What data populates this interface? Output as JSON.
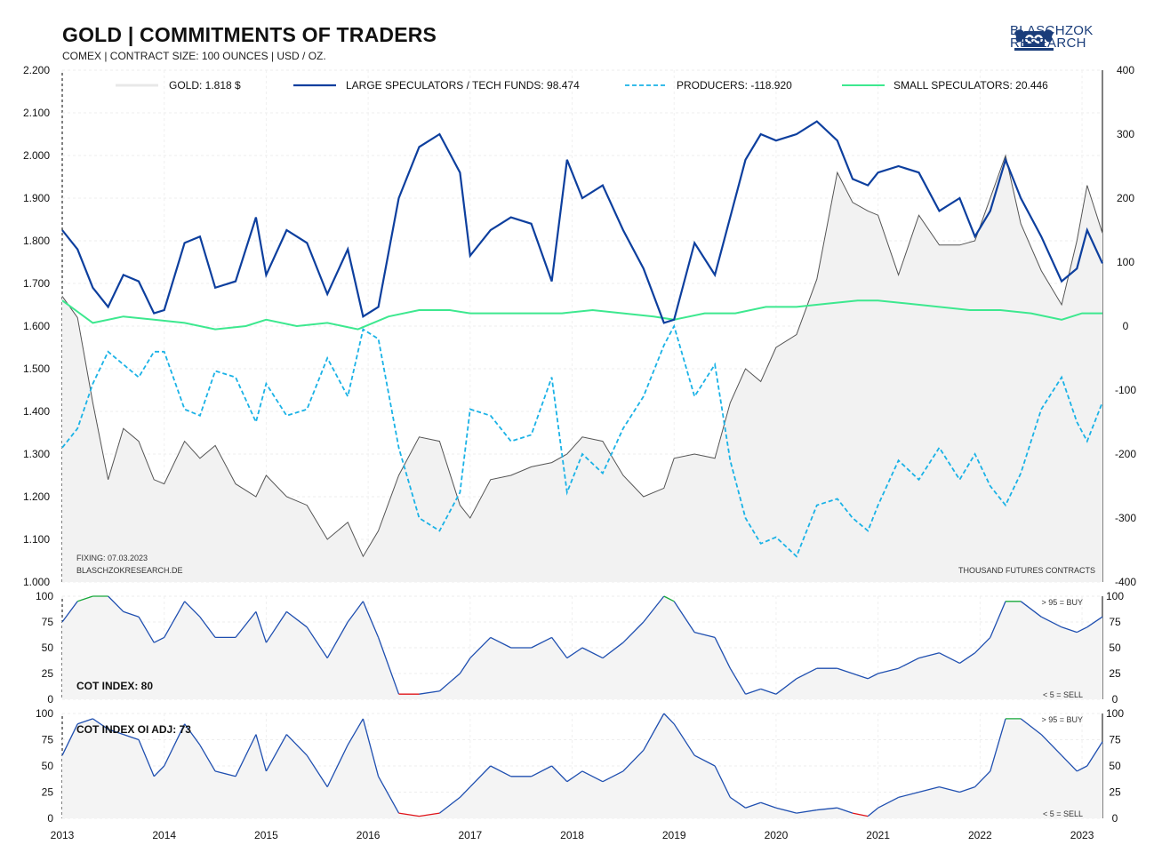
{
  "header": {
    "title": "GOLD | COMMITMENTS OF TRADERS",
    "subtitle": "COMEX | CONTRACT SIZE: 100 OUNCES | USD / OZ.",
    "logo_text_line1": "BLASCHZOK",
    "logo_text_line2": "RESEARCH"
  },
  "notes": {
    "fixing": "FIXING: 07.03.2023",
    "website": "BLASCHZOKRESEARCH.DE",
    "units": "THOUSAND  FUTURES  CONTRACTS",
    "buy_label": "> 95 = BUY",
    "sell_label": "< 5 = SELL",
    "cot_index_label": "COT INDEX: 80",
    "cot_index_oi_label": "COT INDEX OI ADJ: 73"
  },
  "colors": {
    "gold": "#555555",
    "gold_fill": "#f2f2f2",
    "large_spec": "#0d3f9e",
    "producers": "#1ab2e6",
    "small_spec": "#3de88f",
    "index_line": "#1f4fb0",
    "buy": "#17a83a",
    "sell": "#e0141a"
  },
  "chart_data": [
    {
      "type": "line",
      "legend": [
        "GOLD: 1.818 $",
        "LARGE SPECULATORS / TECH FUNDS: 98.474",
        "PRODUCERS: -118.920",
        "SMALL SPECULATORS: 20.446"
      ],
      "x_ticks": [
        "2013",
        "2014",
        "2015",
        "2016",
        "2017",
        "2018",
        "2019",
        "2020",
        "2021",
        "2022",
        "2023"
      ],
      "y_left_ticks": [
        "2.200",
        "2.100",
        "2.000",
        "1.900",
        "1.800",
        "1.700",
        "1.600",
        "1.500",
        "1.400",
        "1.300",
        "1.200",
        "1.100",
        "1.000"
      ],
      "y_right_ticks": [
        "400",
        "300",
        "200",
        "100",
        "0",
        "-100",
        "-200",
        "-300",
        "-400"
      ],
      "ylim_left": [
        1000,
        2200
      ],
      "ylim_right": [
        -400,
        400
      ],
      "xlim": [
        2013.0,
        2023.2
      ],
      "series": [
        {
          "name": "GOLD",
          "axis": "left",
          "x": [
            2013.0,
            2013.15,
            2013.3,
            2013.45,
            2013.6,
            2013.75,
            2013.9,
            2014.0,
            2014.2,
            2014.35,
            2014.5,
            2014.7,
            2014.9,
            2015.0,
            2015.2,
            2015.4,
            2015.6,
            2015.8,
            2015.95,
            2016.1,
            2016.3,
            2016.5,
            2016.7,
            2016.9,
            2017.0,
            2017.2,
            2017.4,
            2017.6,
            2017.8,
            2017.95,
            2018.1,
            2018.3,
            2018.5,
            2018.7,
            2018.9,
            2019.0,
            2019.2,
            2019.4,
            2019.55,
            2019.7,
            2019.85,
            2020.0,
            2020.2,
            2020.4,
            2020.6,
            2020.75,
            2020.9,
            2021.0,
            2021.2,
            2021.4,
            2021.6,
            2021.8,
            2021.95,
            2022.1,
            2022.25,
            2022.4,
            2022.6,
            2022.8,
            2022.95,
            2023.05,
            2023.2
          ],
          "y": [
            1670,
            1620,
            1420,
            1240,
            1360,
            1330,
            1240,
            1230,
            1330,
            1290,
            1320,
            1230,
            1200,
            1250,
            1200,
            1180,
            1100,
            1140,
            1060,
            1120,
            1250,
            1340,
            1330,
            1180,
            1150,
            1240,
            1250,
            1270,
            1280,
            1300,
            1340,
            1330,
            1250,
            1200,
            1220,
            1290,
            1300,
            1290,
            1420,
            1500,
            1470,
            1550,
            1580,
            1710,
            1960,
            1890,
            1870,
            1860,
            1720,
            1860,
            1790,
            1790,
            1800,
            1900,
            2000,
            1840,
            1730,
            1650,
            1800,
            1930,
            1818
          ]
        },
        {
          "name": "LARGE SPECULATORS / TECH FUNDS",
          "axis": "right",
          "x": [
            2013.0,
            2013.15,
            2013.3,
            2013.45,
            2013.6,
            2013.75,
            2013.9,
            2014.0,
            2014.2,
            2014.35,
            2014.5,
            2014.7,
            2014.9,
            2015.0,
            2015.2,
            2015.4,
            2015.6,
            2015.8,
            2015.95,
            2016.1,
            2016.3,
            2016.5,
            2016.7,
            2016.9,
            2017.0,
            2017.2,
            2017.4,
            2017.6,
            2017.8,
            2017.95,
            2018.1,
            2018.3,
            2018.5,
            2018.7,
            2018.9,
            2019.0,
            2019.2,
            2019.4,
            2019.55,
            2019.7,
            2019.85,
            2020.0,
            2020.2,
            2020.4,
            2020.6,
            2020.75,
            2020.9,
            2021.0,
            2021.2,
            2021.4,
            2021.6,
            2021.8,
            2021.95,
            2022.1,
            2022.25,
            2022.4,
            2022.6,
            2022.8,
            2022.95,
            2023.05,
            2023.2
          ],
          "y": [
            150,
            120,
            60,
            30,
            80,
            70,
            20,
            25,
            130,
            140,
            60,
            70,
            170,
            80,
            150,
            130,
            50,
            120,
            15,
            30,
            200,
            280,
            300,
            240,
            110,
            150,
            170,
            160,
            70,
            260,
            200,
            220,
            150,
            90,
            5,
            10,
            130,
            80,
            170,
            260,
            300,
            290,
            300,
            320,
            290,
            230,
            220,
            240,
            250,
            240,
            180,
            200,
            140,
            180,
            260,
            200,
            140,
            70,
            90,
            150,
            98
          ]
        },
        {
          "name": "PRODUCERS",
          "axis": "right",
          "x": [
            2013.0,
            2013.15,
            2013.3,
            2013.45,
            2013.6,
            2013.75,
            2013.9,
            2014.0,
            2014.2,
            2014.35,
            2014.5,
            2014.7,
            2014.9,
            2015.0,
            2015.2,
            2015.4,
            2015.6,
            2015.8,
            2015.95,
            2016.1,
            2016.3,
            2016.5,
            2016.7,
            2016.9,
            2017.0,
            2017.2,
            2017.4,
            2017.6,
            2017.8,
            2017.95,
            2018.1,
            2018.3,
            2018.5,
            2018.7,
            2018.9,
            2019.0,
            2019.2,
            2019.4,
            2019.55,
            2019.7,
            2019.85,
            2020.0,
            2020.2,
            2020.4,
            2020.6,
            2020.75,
            2020.9,
            2021.0,
            2021.2,
            2021.4,
            2021.6,
            2021.8,
            2021.95,
            2022.1,
            2022.25,
            2022.4,
            2022.6,
            2022.8,
            2022.95,
            2023.05,
            2023.2
          ],
          "y": [
            -190,
            -160,
            -90,
            -40,
            -60,
            -80,
            -40,
            -40,
            -130,
            -140,
            -70,
            -80,
            -150,
            -90,
            -140,
            -130,
            -50,
            -110,
            -5,
            -20,
            -190,
            -300,
            -320,
            -260,
            -130,
            -140,
            -180,
            -170,
            -80,
            -260,
            -200,
            -230,
            -160,
            -110,
            -30,
            0,
            -110,
            -60,
            -210,
            -300,
            -340,
            -330,
            -360,
            -280,
            -270,
            -300,
            -320,
            -280,
            -210,
            -240,
            -190,
            -240,
            -200,
            -250,
            -280,
            -230,
            -130,
            -80,
            -150,
            -180,
            -119
          ]
        },
        {
          "name": "SMALL SPECULATORS",
          "axis": "right",
          "x": [
            2013.0,
            2013.3,
            2013.6,
            2013.9,
            2014.2,
            2014.5,
            2014.8,
            2015.0,
            2015.3,
            2015.6,
            2015.9,
            2016.2,
            2016.5,
            2016.8,
            2017.0,
            2017.3,
            2017.6,
            2017.9,
            2018.2,
            2018.5,
            2018.8,
            2019.0,
            2019.3,
            2019.6,
            2019.9,
            2020.2,
            2020.5,
            2020.8,
            2021.0,
            2021.3,
            2021.6,
            2021.9,
            2022.2,
            2022.5,
            2022.8,
            2023.0,
            2023.2
          ],
          "y": [
            40,
            5,
            15,
            10,
            5,
            -5,
            0,
            10,
            0,
            5,
            -5,
            15,
            25,
            25,
            20,
            20,
            20,
            20,
            25,
            20,
            15,
            10,
            20,
            20,
            30,
            30,
            35,
            40,
            40,
            35,
            30,
            25,
            25,
            20,
            10,
            20,
            20
          ]
        }
      ]
    },
    {
      "type": "line",
      "title": "COT INDEX: 80",
      "ylim": [
        0,
        100
      ],
      "y_ticks": [
        "100",
        "75",
        "50",
        "25",
        "0"
      ],
      "x": [
        2013.0,
        2013.15,
        2013.3,
        2013.45,
        2013.6,
        2013.75,
        2013.9,
        2014.0,
        2014.2,
        2014.35,
        2014.5,
        2014.7,
        2014.9,
        2015.0,
        2015.2,
        2015.4,
        2015.6,
        2015.8,
        2015.95,
        2016.1,
        2016.3,
        2016.5,
        2016.7,
        2016.9,
        2017.0,
        2017.2,
        2017.4,
        2017.6,
        2017.8,
        2017.95,
        2018.1,
        2018.3,
        2018.5,
        2018.7,
        2018.9,
        2019.0,
        2019.2,
        2019.4,
        2019.55,
        2019.7,
        2019.85,
        2020.0,
        2020.2,
        2020.4,
        2020.6,
        2020.75,
        2020.9,
        2021.0,
        2021.2,
        2021.4,
        2021.6,
        2021.8,
        2021.95,
        2022.1,
        2022.25,
        2022.4,
        2022.6,
        2022.8,
        2022.95,
        2023.05,
        2023.2
      ],
      "values": [
        75,
        95,
        100,
        100,
        85,
        80,
        55,
        60,
        95,
        80,
        60,
        60,
        85,
        55,
        85,
        70,
        40,
        75,
        95,
        60,
        5,
        5,
        8,
        25,
        40,
        60,
        50,
        50,
        60,
        40,
        50,
        40,
        55,
        75,
        100,
        95,
        65,
        60,
        30,
        5,
        10,
        5,
        20,
        30,
        30,
        25,
        20,
        25,
        30,
        40,
        45,
        35,
        45,
        60,
        95,
        95,
        80,
        70,
        65,
        70,
        80
      ]
    },
    {
      "type": "line",
      "title": "COT INDEX OI ADJ: 73",
      "ylim": [
        0,
        100
      ],
      "y_ticks": [
        "100",
        "75",
        "50",
        "25",
        "0"
      ],
      "x": [
        2013.0,
        2013.15,
        2013.3,
        2013.45,
        2013.6,
        2013.75,
        2013.9,
        2014.0,
        2014.2,
        2014.35,
        2014.5,
        2014.7,
        2014.9,
        2015.0,
        2015.2,
        2015.4,
        2015.6,
        2015.8,
        2015.95,
        2016.1,
        2016.3,
        2016.5,
        2016.7,
        2016.9,
        2017.0,
        2017.2,
        2017.4,
        2017.6,
        2017.8,
        2017.95,
        2018.1,
        2018.3,
        2018.5,
        2018.7,
        2018.9,
        2019.0,
        2019.2,
        2019.4,
        2019.55,
        2019.7,
        2019.85,
        2020.0,
        2020.2,
        2020.4,
        2020.6,
        2020.75,
        2020.9,
        2021.0,
        2021.2,
        2021.4,
        2021.6,
        2021.8,
        2021.95,
        2022.1,
        2022.25,
        2022.4,
        2022.6,
        2022.8,
        2022.95,
        2023.05,
        2023.2
      ],
      "values": [
        60,
        90,
        95,
        85,
        80,
        75,
        40,
        50,
        90,
        70,
        45,
        40,
        80,
        45,
        80,
        60,
        30,
        70,
        95,
        40,
        5,
        2,
        5,
        20,
        30,
        50,
        40,
        40,
        50,
        35,
        45,
        35,
        45,
        65,
        100,
        90,
        60,
        50,
        20,
        10,
        15,
        10,
        5,
        8,
        10,
        5,
        2,
        10,
        20,
        25,
        30,
        25,
        30,
        45,
        95,
        95,
        80,
        60,
        45,
        50,
        73
      ]
    }
  ]
}
